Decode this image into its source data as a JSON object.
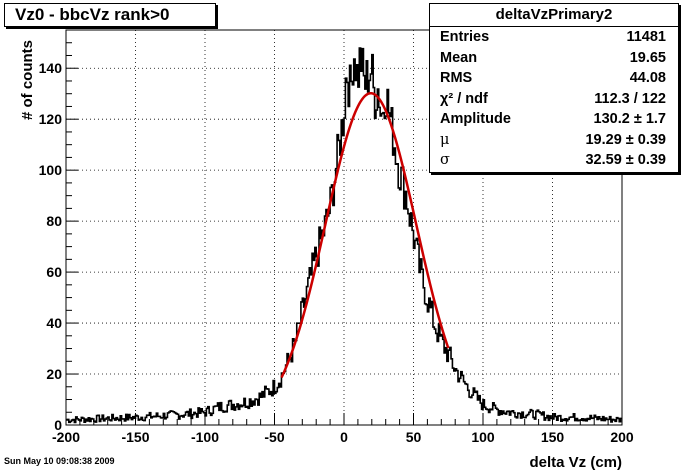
{
  "title_box": "Vz0 - bbcVz rank>0",
  "stats": {
    "title": "deltaVzPrimary2",
    "rows": [
      {
        "label": "Entries",
        "value": "11481"
      },
      {
        "label": "Mean",
        "value": "19.65"
      },
      {
        "label": "RMS",
        "value": "44.08"
      },
      {
        "label": "χ² / ndf",
        "value": "112.3 / 122"
      },
      {
        "label": "Amplitude",
        "value": "130.2 ± 1.7"
      },
      {
        "label": "μ",
        "value": "19.29 ± 0.39"
      },
      {
        "label": "σ",
        "value": "32.59 ± 0.39"
      }
    ]
  },
  "timestamp": "Sun May 10 09:08:38 2009",
  "colors": {
    "histogram": "#000000",
    "fit": "#cc0000",
    "grid": "#000000"
  },
  "chart_data": {
    "type": "line",
    "xlabel": "delta Vz (cm)",
    "ylabel": "# of counts",
    "xlim": [
      -200,
      200
    ],
    "ylim": [
      0,
      155
    ],
    "xticks": [
      -200,
      -150,
      -100,
      -50,
      0,
      50,
      100,
      150,
      200
    ],
    "yticks": [
      0,
      20,
      40,
      60,
      80,
      100,
      120,
      140
    ],
    "grid": true,
    "series": [
      {
        "style": "histogram",
        "x": [
          -200,
          -150,
          -120,
          -100,
          -90,
          -80,
          -70,
          -60,
          -55,
          -50,
          -45,
          -40,
          -35,
          -30,
          -25,
          -20,
          -15,
          -10,
          -5,
          0,
          2,
          5,
          7,
          10,
          12,
          15,
          17,
          20,
          22,
          25,
          27,
          30,
          32,
          35,
          40,
          45,
          50,
          55,
          60,
          65,
          70,
          75,
          80,
          85,
          90,
          95,
          100,
          110,
          120,
          140,
          150,
          170,
          200
        ],
        "y": [
          2,
          3,
          4,
          5,
          7,
          8,
          9,
          11,
          13,
          15,
          19,
          25,
          32,
          44,
          55,
          66,
          75,
          85,
          103,
          122,
          140,
          130,
          148,
          136,
          145,
          133,
          137,
          140,
          128,
          133,
          120,
          132,
          125,
          115,
          100,
          90,
          75,
          60,
          50,
          40,
          33,
          28,
          22,
          18,
          14,
          11,
          8,
          6,
          5,
          4,
          3,
          3,
          2
        ]
      },
      {
        "style": "fit",
        "function": "gaus",
        "amplitude": 130.2,
        "mean": 19.29,
        "sigma": 32.59,
        "x_range": [
          -45,
          75
        ]
      }
    ]
  }
}
